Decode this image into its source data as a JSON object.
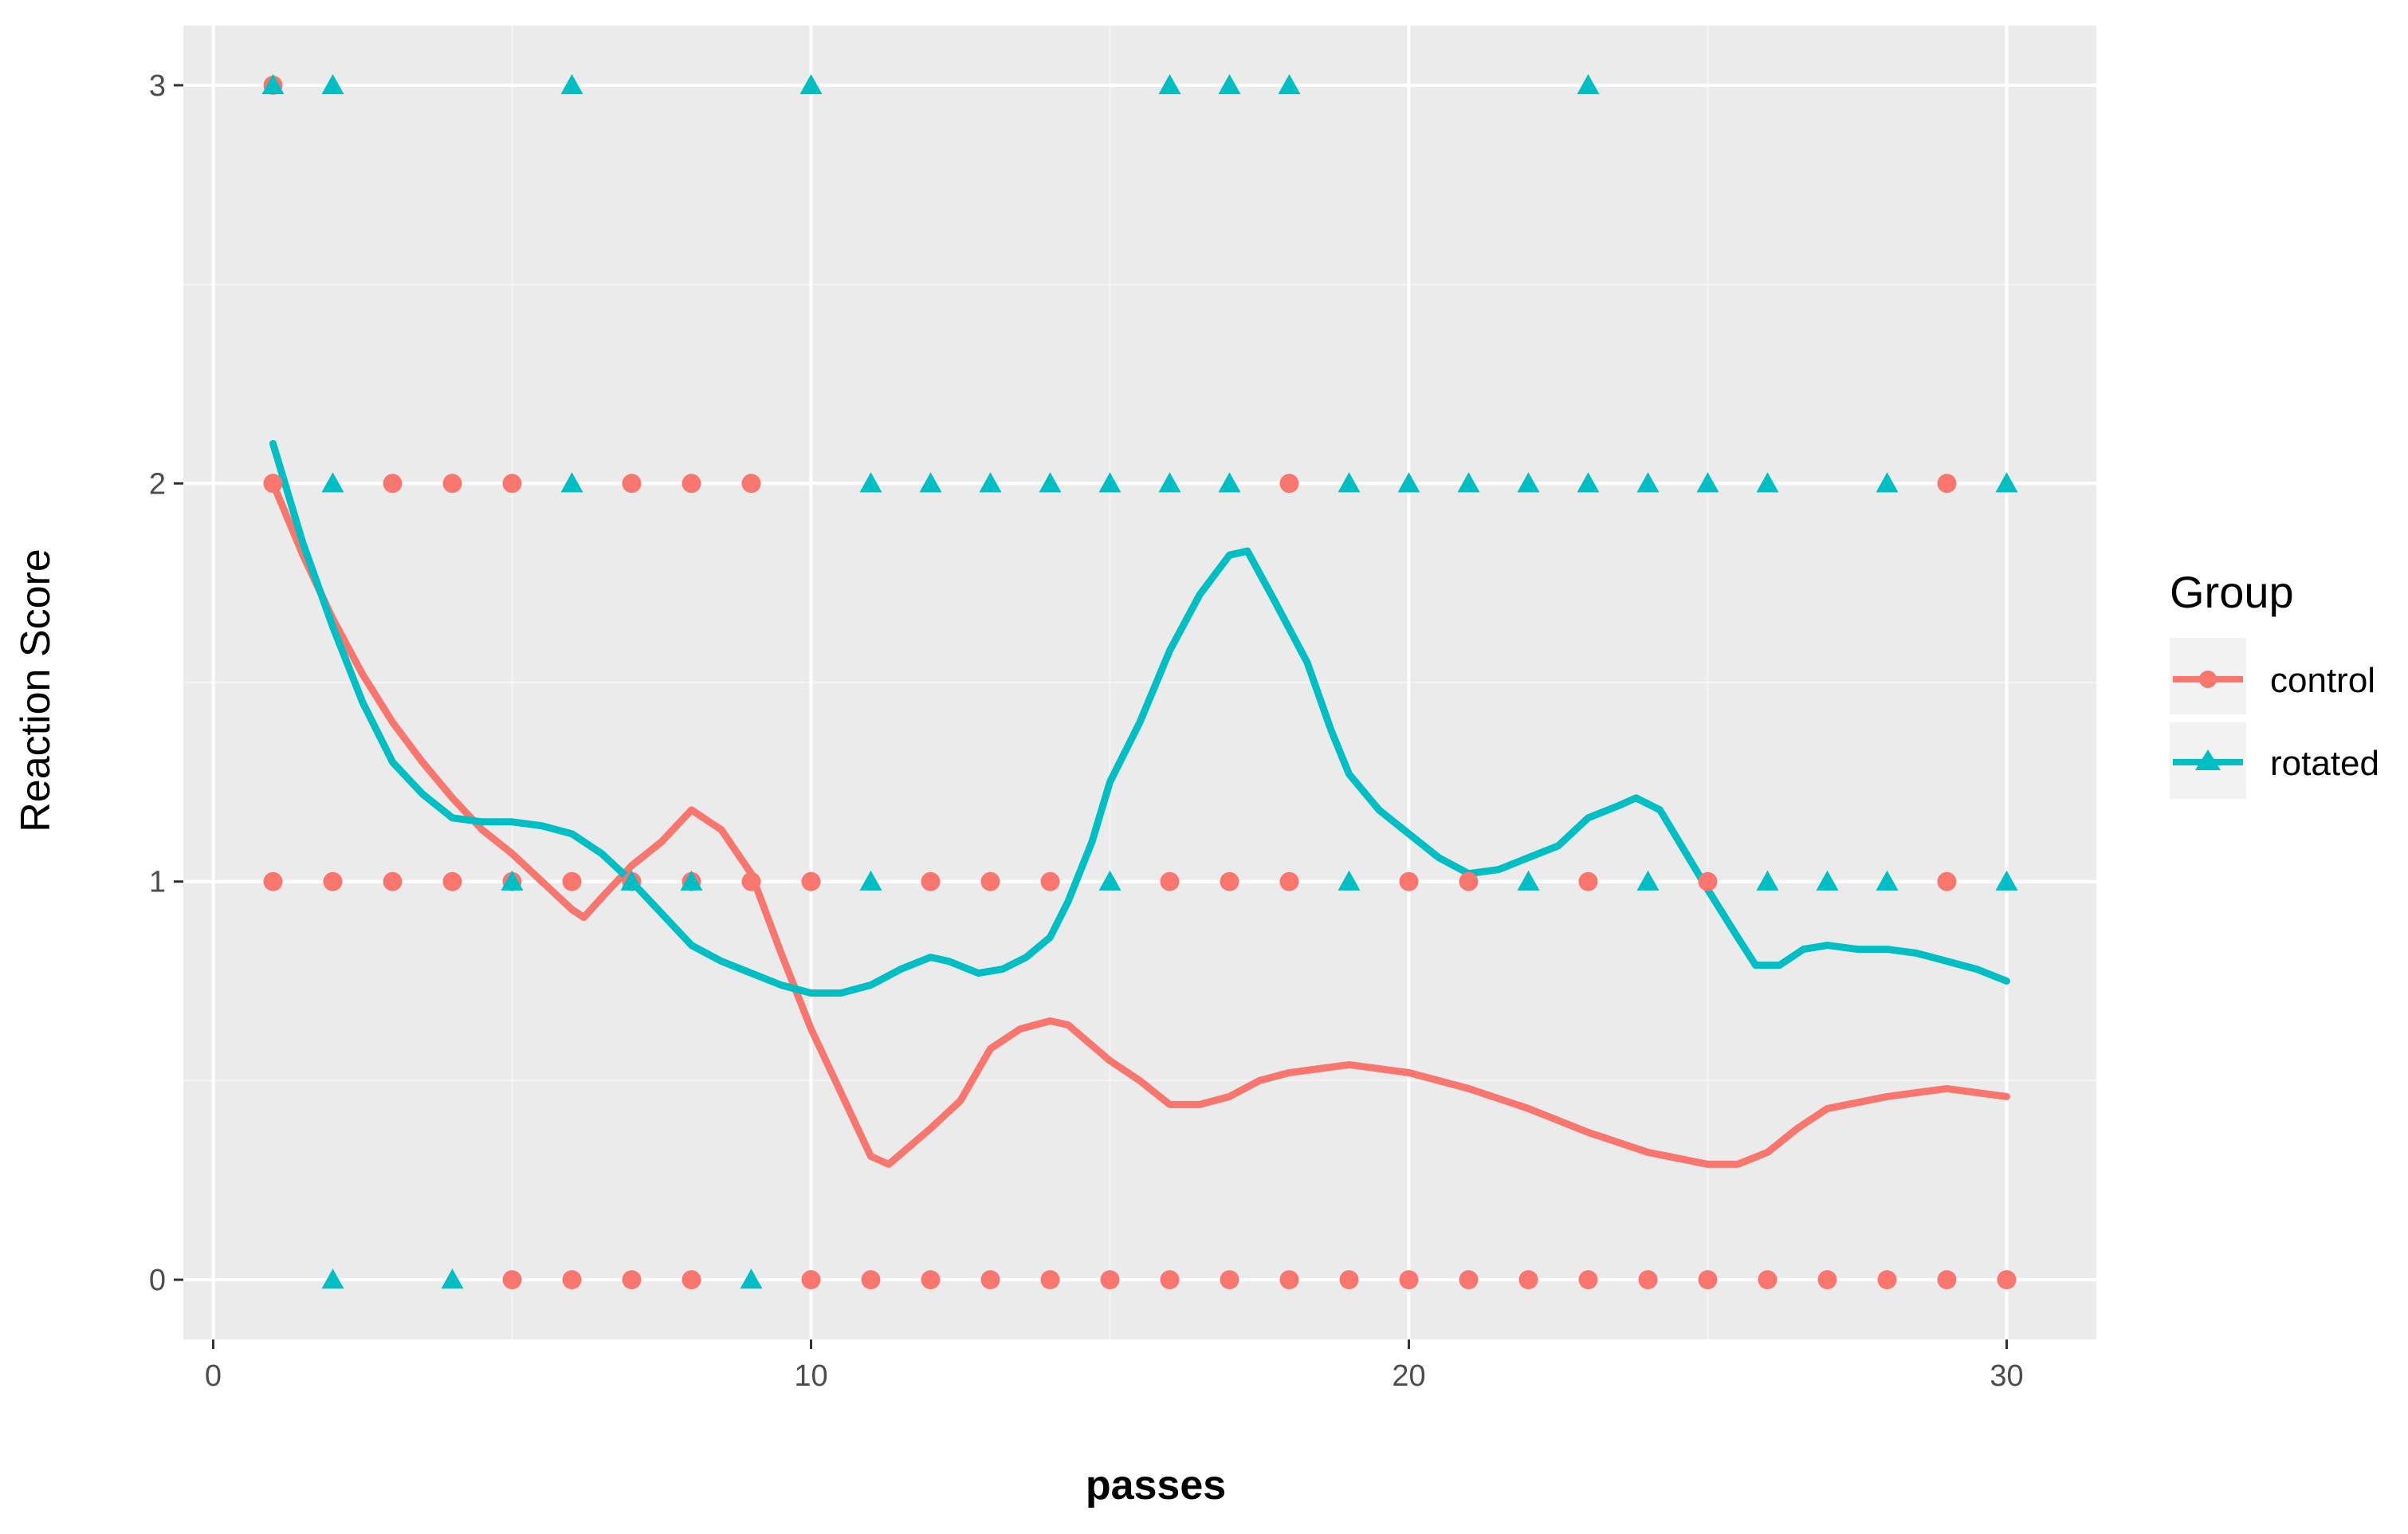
{
  "colors": {
    "panel_bg": "#ebebeb",
    "grid_major": "#ffffff",
    "grid_minor": "#f5f5f5",
    "control": "#f8766d",
    "rotated": "#00bfc4",
    "tick": "#333333"
  },
  "chart_data": {
    "type": "scatter",
    "title": "",
    "xlabel": "passes",
    "ylabel": "Reaction Score",
    "xlim": [
      -0.5,
      31.5
    ],
    "ylim": [
      -0.15,
      3.15
    ],
    "x_ticks": [
      0,
      10,
      20,
      30
    ],
    "x_tick_labels": [
      "0",
      "10",
      "20",
      "30"
    ],
    "y_ticks": [
      0,
      1,
      2,
      3
    ],
    "y_tick_labels": [
      "0",
      "1",
      "2",
      "3"
    ],
    "grid": true,
    "legend": {
      "title": "Group",
      "position": "right",
      "entries": [
        "control",
        "rotated"
      ]
    },
    "series": [
      {
        "name": "control",
        "color": "#f8766d",
        "marker": "circle",
        "points": [
          [
            1,
            3
          ],
          [
            1,
            2
          ],
          [
            3,
            2
          ],
          [
            4,
            2
          ],
          [
            5,
            2
          ],
          [
            7,
            2
          ],
          [
            8,
            2
          ],
          [
            9,
            2
          ],
          [
            18,
            2
          ],
          [
            29,
            2
          ],
          [
            1,
            1
          ],
          [
            2,
            1
          ],
          [
            3,
            1
          ],
          [
            4,
            1
          ],
          [
            5,
            1
          ],
          [
            6,
            1
          ],
          [
            7,
            1
          ],
          [
            8,
            1
          ],
          [
            9,
            1
          ],
          [
            10,
            1
          ],
          [
            12,
            1
          ],
          [
            13,
            1
          ],
          [
            14,
            1
          ],
          [
            16,
            1
          ],
          [
            17,
            1
          ],
          [
            18,
            1
          ],
          [
            20,
            1
          ],
          [
            21,
            1
          ],
          [
            23,
            1
          ],
          [
            25,
            1
          ],
          [
            29,
            1
          ],
          [
            5,
            0
          ],
          [
            6,
            0
          ],
          [
            7,
            0
          ],
          [
            8,
            0
          ],
          [
            10,
            0
          ],
          [
            11,
            0
          ],
          [
            12,
            0
          ],
          [
            13,
            0
          ],
          [
            14,
            0
          ],
          [
            15,
            0
          ],
          [
            16,
            0
          ],
          [
            17,
            0
          ],
          [
            18,
            0
          ],
          [
            19,
            0
          ],
          [
            20,
            0
          ],
          [
            21,
            0
          ],
          [
            22,
            0
          ],
          [
            23,
            0
          ],
          [
            24,
            0
          ],
          [
            25,
            0
          ],
          [
            26,
            0
          ],
          [
            27,
            0
          ],
          [
            28,
            0
          ],
          [
            29,
            0
          ],
          [
            30,
            0
          ]
        ],
        "smooth": [
          [
            1,
            2.0
          ],
          [
            1.5,
            1.82
          ],
          [
            2,
            1.66
          ],
          [
            2.5,
            1.52
          ],
          [
            3,
            1.4
          ],
          [
            3.5,
            1.3
          ],
          [
            4,
            1.21
          ],
          [
            4.5,
            1.13
          ],
          [
            5,
            1.07
          ],
          [
            5.5,
            1.0
          ],
          [
            6,
            0.93
          ],
          [
            6.2,
            0.91
          ],
          [
            6.5,
            0.96
          ],
          [
            7,
            1.04
          ],
          [
            7.5,
            1.1
          ],
          [
            8,
            1.18
          ],
          [
            8.5,
            1.13
          ],
          [
            9,
            1.02
          ],
          [
            9.5,
            0.82
          ],
          [
            10,
            0.63
          ],
          [
            10.5,
            0.47
          ],
          [
            11,
            0.31
          ],
          [
            11.3,
            0.29
          ],
          [
            12,
            0.38
          ],
          [
            12.5,
            0.45
          ],
          [
            13,
            0.58
          ],
          [
            13.5,
            0.63
          ],
          [
            14,
            0.65
          ],
          [
            14.3,
            0.64
          ],
          [
            15,
            0.55
          ],
          [
            15.5,
            0.5
          ],
          [
            16,
            0.44
          ],
          [
            16.5,
            0.44
          ],
          [
            17,
            0.46
          ],
          [
            17.5,
            0.5
          ],
          [
            18,
            0.52
          ],
          [
            19,
            0.54
          ],
          [
            20,
            0.52
          ],
          [
            21,
            0.48
          ],
          [
            22,
            0.43
          ],
          [
            23,
            0.37
          ],
          [
            24,
            0.32
          ],
          [
            25,
            0.29
          ],
          [
            25.5,
            0.29
          ],
          [
            26,
            0.32
          ],
          [
            26.5,
            0.38
          ],
          [
            27,
            0.43
          ],
          [
            28,
            0.46
          ],
          [
            29,
            0.48
          ],
          [
            30,
            0.46
          ]
        ]
      },
      {
        "name": "rotated",
        "color": "#00bfc4",
        "marker": "triangle",
        "points": [
          [
            1,
            3
          ],
          [
            2,
            3
          ],
          [
            6,
            3
          ],
          [
            10,
            3
          ],
          [
            16,
            3
          ],
          [
            17,
            3
          ],
          [
            18,
            3
          ],
          [
            23,
            3
          ],
          [
            2,
            2
          ],
          [
            6,
            2
          ],
          [
            11,
            2
          ],
          [
            12,
            2
          ],
          [
            13,
            2
          ],
          [
            14,
            2
          ],
          [
            15,
            2
          ],
          [
            16,
            2
          ],
          [
            17,
            2
          ],
          [
            19,
            2
          ],
          [
            20,
            2
          ],
          [
            21,
            2
          ],
          [
            22,
            2
          ],
          [
            23,
            2
          ],
          [
            24,
            2
          ],
          [
            25,
            2
          ],
          [
            26,
            2
          ],
          [
            28,
            2
          ],
          [
            30,
            2
          ],
          [
            5,
            1
          ],
          [
            7,
            1
          ],
          [
            8,
            1
          ],
          [
            11,
            1
          ],
          [
            15,
            1
          ],
          [
            19,
            1
          ],
          [
            22,
            1
          ],
          [
            24,
            1
          ],
          [
            26,
            1
          ],
          [
            27,
            1
          ],
          [
            28,
            1
          ],
          [
            30,
            1
          ],
          [
            2,
            0
          ],
          [
            4,
            0
          ],
          [
            9,
            0
          ]
        ],
        "smooth": [
          [
            1,
            2.1
          ],
          [
            1.5,
            1.85
          ],
          [
            2,
            1.64
          ],
          [
            2.5,
            1.45
          ],
          [
            3,
            1.3
          ],
          [
            3.5,
            1.22
          ],
          [
            4,
            1.16
          ],
          [
            4.5,
            1.15
          ],
          [
            5,
            1.15
          ],
          [
            5.5,
            1.14
          ],
          [
            6,
            1.12
          ],
          [
            6.5,
            1.07
          ],
          [
            7,
            1.0
          ],
          [
            7.5,
            0.92
          ],
          [
            8,
            0.84
          ],
          [
            8.5,
            0.8
          ],
          [
            9,
            0.77
          ],
          [
            9.5,
            0.74
          ],
          [
            10,
            0.72
          ],
          [
            10.5,
            0.72
          ],
          [
            11,
            0.74
          ],
          [
            11.5,
            0.78
          ],
          [
            12,
            0.81
          ],
          [
            12.3,
            0.8
          ],
          [
            12.8,
            0.77
          ],
          [
            13.2,
            0.78
          ],
          [
            13.6,
            0.81
          ],
          [
            14,
            0.86
          ],
          [
            14.3,
            0.95
          ],
          [
            14.7,
            1.1
          ],
          [
            15,
            1.25
          ],
          [
            15.5,
            1.4
          ],
          [
            16,
            1.58
          ],
          [
            16.5,
            1.72
          ],
          [
            17,
            1.82
          ],
          [
            17.3,
            1.83
          ],
          [
            17.7,
            1.72
          ],
          [
            18.3,
            1.55
          ],
          [
            18.7,
            1.38
          ],
          [
            19,
            1.27
          ],
          [
            19.5,
            1.18
          ],
          [
            20,
            1.12
          ],
          [
            20.5,
            1.06
          ],
          [
            21,
            1.02
          ],
          [
            21.5,
            1.03
          ],
          [
            22,
            1.06
          ],
          [
            22.5,
            1.09
          ],
          [
            23,
            1.16
          ],
          [
            23.5,
            1.19
          ],
          [
            23.8,
            1.21
          ],
          [
            24.2,
            1.18
          ],
          [
            24.6,
            1.08
          ],
          [
            25,
            0.98
          ],
          [
            25.5,
            0.86
          ],
          [
            25.8,
            0.79
          ],
          [
            26.2,
            0.79
          ],
          [
            26.6,
            0.83
          ],
          [
            27,
            0.84
          ],
          [
            27.5,
            0.83
          ],
          [
            28,
            0.83
          ],
          [
            28.5,
            0.82
          ],
          [
            29,
            0.8
          ],
          [
            29.5,
            0.78
          ],
          [
            30,
            0.75
          ]
        ]
      }
    ]
  }
}
